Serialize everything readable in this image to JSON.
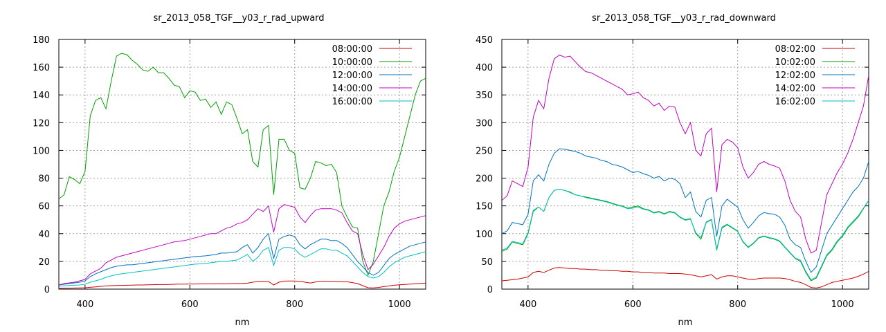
{
  "chart_data": [
    {
      "type": "line",
      "title": "sr_2013_058_TGF__y03_r_rad_upward",
      "xlabel": "nm",
      "ylabel": "",
      "xlim": [
        350,
        1050
      ],
      "ylim": [
        0,
        180
      ],
      "xticks": [
        400,
        600,
        800,
        1000
      ],
      "yticks": [
        0,
        20,
        40,
        60,
        80,
        100,
        120,
        140,
        160,
        180
      ],
      "grid": true,
      "legend_position": "top-right",
      "x": [
        350,
        360,
        370,
        380,
        390,
        400,
        410,
        420,
        430,
        440,
        450,
        460,
        470,
        480,
        490,
        500,
        510,
        520,
        530,
        540,
        550,
        560,
        570,
        580,
        590,
        600,
        610,
        620,
        630,
        640,
        650,
        660,
        670,
        680,
        690,
        700,
        710,
        720,
        730,
        740,
        750,
        760,
        770,
        780,
        790,
        800,
        810,
        820,
        830,
        840,
        850,
        860,
        870,
        880,
        890,
        900,
        910,
        920,
        930,
        940,
        950,
        960,
        970,
        980,
        990,
        1000,
        1010,
        1020,
        1030,
        1040,
        1050
      ],
      "series": [
        {
          "name": "08:00:00",
          "color": "#cc0000",
          "values": [
            0.5,
            0.6,
            0.7,
            0.8,
            0.9,
            1.0,
            1.3,
            1.6,
            2.0,
            2.3,
            2.5,
            2.6,
            2.7,
            2.8,
            2.9,
            3.0,
            3.0,
            3.1,
            3.2,
            3.3,
            3.3,
            3.4,
            3.5,
            3.6,
            3.6,
            3.7,
            3.7,
            3.8,
            3.8,
            3.8,
            3.9,
            3.9,
            3.9,
            4.0,
            4.0,
            4.1,
            4.3,
            5.0,
            5.5,
            5.6,
            5.5,
            3.0,
            5.0,
            5.8,
            5.9,
            5.9,
            5.6,
            5.0,
            4.4,
            5.2,
            5.6,
            5.6,
            5.5,
            5.5,
            5.4,
            5.3,
            4.7,
            4.0,
            2.5,
            1.0,
            0.9,
            1.2,
            1.8,
            2.3,
            2.8,
            3.1,
            3.4,
            3.6,
            3.9,
            4.1,
            4.3
          ]
        },
        {
          "name": "10:00:00",
          "color": "#00a000",
          "values": [
            65,
            68,
            81,
            79,
            76,
            85,
            125,
            136,
            138,
            130,
            150,
            168,
            170,
            169,
            165,
            162,
            158,
            157,
            160,
            156,
            156,
            152,
            147,
            146,
            138,
            143,
            142,
            136,
            137,
            131,
            135,
            126,
            135,
            133,
            123,
            112,
            115,
            92,
            88,
            115,
            118,
            68,
            108,
            108,
            100,
            98,
            73,
            72,
            80,
            92,
            91,
            89,
            90,
            84,
            60,
            52,
            45,
            44,
            20,
            10,
            20,
            40,
            60,
            70,
            85,
            95,
            110,
            125,
            140,
            150,
            152
          ]
        },
        {
          "name": "12:00:00",
          "color": "#0070c0",
          "values": [
            3.0,
            3.5,
            4.0,
            4.5,
            5.0,
            6.0,
            9,
            11,
            12.5,
            14,
            15.5,
            16.5,
            17,
            17.5,
            17.5,
            18,
            18.5,
            19,
            19.5,
            20,
            20.5,
            21,
            21.5,
            22,
            22.5,
            23,
            23.5,
            23.7,
            24,
            24.5,
            25,
            26,
            26,
            26.5,
            27,
            30,
            32,
            26,
            30,
            36,
            40,
            22,
            36,
            38,
            39,
            38,
            32,
            29,
            32,
            34,
            36,
            36,
            35,
            35,
            33,
            30,
            25,
            20,
            16,
            12,
            10,
            12,
            17,
            22,
            25,
            27,
            29,
            31,
            32,
            33,
            34
          ]
        },
        {
          "name": "14:00:00",
          "color": "#c000c0",
          "values": [
            3,
            4,
            4.5,
            5,
            6,
            7,
            11,
            13,
            15,
            19,
            21,
            23,
            24,
            25,
            26,
            27,
            28,
            29,
            30,
            31,
            32,
            33,
            34,
            34.5,
            35,
            36,
            37,
            38,
            39,
            40,
            40,
            42,
            44,
            45,
            47,
            48,
            50,
            54,
            58,
            56,
            60,
            41,
            58,
            61,
            60,
            59,
            52,
            48,
            53,
            57,
            58,
            58,
            58,
            57,
            55,
            48,
            42,
            40,
            25,
            14,
            18,
            24,
            30,
            38,
            44,
            47,
            49,
            50,
            51,
            52,
            53
          ]
        },
        {
          "name": "16:00:00",
          "color": "#00c0c0",
          "values": [
            2.2,
            2.4,
            2.6,
            2.8,
            3.0,
            3.5,
            5.0,
            6.0,
            7.0,
            8.5,
            9.5,
            10.5,
            11,
            11.5,
            12,
            12.5,
            13,
            13.5,
            14,
            14.5,
            15,
            15.5,
            16,
            16.5,
            17,
            17.5,
            18,
            18.2,
            18.5,
            19,
            19.5,
            20,
            20,
            20.5,
            21,
            23,
            25,
            20,
            23,
            28,
            30,
            17,
            28,
            30,
            30,
            29,
            25,
            23,
            25,
            27,
            29,
            29,
            28,
            28,
            26,
            24,
            20,
            16,
            12,
            9,
            8,
            9,
            12,
            16,
            19,
            21,
            23,
            24,
            25,
            26,
            27
          ]
        }
      ]
    },
    {
      "type": "line",
      "title": "sr_2013_058_TGF__y03_r_rad_downward",
      "xlabel": "nm",
      "ylabel": "",
      "xlim": [
        350,
        1050
      ],
      "ylim": [
        0,
        450
      ],
      "xticks": [
        400,
        600,
        800,
        1000
      ],
      "yticks": [
        0,
        50,
        100,
        150,
        200,
        250,
        300,
        350,
        400,
        450
      ],
      "grid": true,
      "legend_position": "top-right",
      "x": [
        350,
        360,
        370,
        380,
        390,
        400,
        410,
        420,
        430,
        440,
        450,
        460,
        470,
        480,
        490,
        500,
        510,
        520,
        530,
        540,
        550,
        560,
        570,
        580,
        590,
        600,
        610,
        620,
        630,
        640,
        650,
        660,
        670,
        680,
        690,
        700,
        710,
        720,
        730,
        740,
        750,
        760,
        770,
        780,
        790,
        800,
        810,
        820,
        830,
        840,
        850,
        860,
        870,
        880,
        890,
        900,
        910,
        920,
        930,
        940,
        950,
        960,
        970,
        980,
        990,
        1000,
        1010,
        1020,
        1030,
        1040,
        1050
      ],
      "series": [
        {
          "name": "08:02:00",
          "color": "#cc0000",
          "values": [
            15,
            16,
            17,
            18,
            20,
            22,
            30,
            32,
            30,
            34,
            38,
            39,
            38,
            37,
            37,
            36,
            36,
            35,
            35,
            34,
            34,
            33,
            33,
            32,
            32,
            31,
            31,
            30,
            30,
            29,
            29,
            29,
            28,
            28,
            28,
            27,
            26,
            24,
            22,
            24,
            26,
            18,
            22,
            24,
            24,
            22,
            20,
            18,
            17,
            19,
            20,
            20,
            20,
            20,
            19,
            17,
            14,
            12,
            8,
            3,
            2,
            4,
            8,
            12,
            14,
            16,
            18,
            20,
            23,
            27,
            32
          ]
        },
        {
          "name": "10:02:00",
          "color": "#00a000",
          "values": [
            68,
            72,
            85,
            82,
            80,
            100,
            140,
            148,
            140,
            165,
            178,
            180,
            178,
            175,
            170,
            168,
            166,
            164,
            162,
            160,
            158,
            155,
            152,
            150,
            146,
            148,
            150,
            145,
            143,
            138,
            140,
            136,
            140,
            138,
            130,
            125,
            127,
            100,
            90,
            120,
            125,
            70,
            110,
            116,
            110,
            104,
            85,
            75,
            82,
            92,
            95,
            92,
            90,
            86,
            75,
            65,
            55,
            50,
            30,
            15,
            20,
            40,
            60,
            70,
            85,
            95,
            110,
            120,
            130,
            145,
            160
          ]
        },
        {
          "name": "12:02:00",
          "color": "#0070c0",
          "values": [
            100,
            105,
            120,
            118,
            116,
            135,
            195,
            206,
            195,
            225,
            245,
            253,
            252,
            250,
            248,
            245,
            240,
            238,
            236,
            232,
            230,
            225,
            223,
            220,
            215,
            210,
            212,
            208,
            205,
            200,
            203,
            195,
            200,
            198,
            190,
            165,
            175,
            140,
            130,
            160,
            165,
            95,
            150,
            162,
            155,
            148,
            125,
            110,
            120,
            132,
            138,
            136,
            135,
            130,
            115,
            90,
            80,
            75,
            50,
            30,
            40,
            70,
            100,
            115,
            130,
            145,
            160,
            175,
            185,
            200,
            230
          ]
        },
        {
          "name": "14:02:00",
          "color": "#c000c0",
          "values": [
            160,
            168,
            195,
            190,
            185,
            220,
            310,
            340,
            325,
            380,
            415,
            422,
            418,
            420,
            410,
            400,
            392,
            390,
            385,
            380,
            375,
            370,
            365,
            360,
            350,
            352,
            355,
            345,
            340,
            330,
            335,
            322,
            330,
            328,
            300,
            280,
            300,
            250,
            240,
            280,
            290,
            175,
            260,
            270,
            265,
            255,
            220,
            200,
            210,
            225,
            230,
            225,
            222,
            218,
            195,
            160,
            140,
            130,
            90,
            65,
            70,
            120,
            170,
            190,
            210,
            225,
            245,
            270,
            300,
            330,
            385
          ]
        },
        {
          "name": "16:02:00",
          "color": "#00c0c0",
          "values": [
            70,
            74,
            86,
            84,
            82,
            102,
            142,
            148,
            140,
            165,
            178,
            180,
            178,
            174,
            170,
            168,
            165,
            163,
            161,
            159,
            157,
            154,
            151,
            149,
            145,
            146,
            148,
            144,
            142,
            137,
            139,
            135,
            139,
            137,
            129,
            124,
            126,
            102,
            93,
            121,
            126,
            72,
            112,
            117,
            111,
            105,
            86,
            76,
            83,
            93,
            96,
            93,
            91,
            87,
            76,
            66,
            56,
            52,
            32,
            17,
            22,
            42,
            62,
            72,
            87,
            97,
            112,
            122,
            132,
            146,
            160
          ]
        }
      ]
    }
  ]
}
